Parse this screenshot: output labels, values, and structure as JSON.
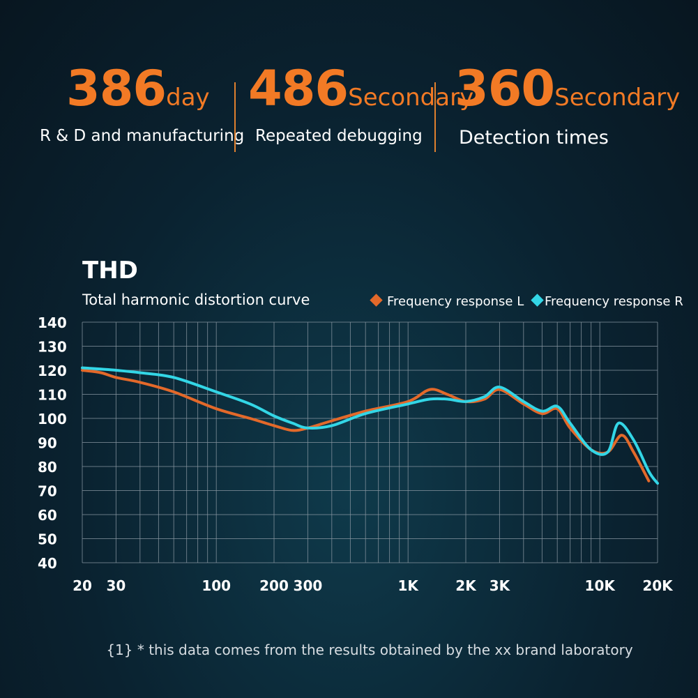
{
  "stats": [
    {
      "value": "386",
      "unit": "day",
      "caption": "R & D and manufacturing"
    },
    {
      "value": "486",
      "unit": "Secondary",
      "caption": "Repeated debugging"
    },
    {
      "value": "360",
      "unit": "Secondary",
      "caption": "Detection times"
    }
  ],
  "colors": {
    "accent": "#f27a25",
    "series_l": "#e3692a",
    "series_r": "#33d6e6"
  },
  "chart_data": {
    "type": "line",
    "title": "THD",
    "subtitle": "Total harmonic distortion curve",
    "xlabel": "",
    "ylabel": "",
    "x_scale": "log",
    "xlim": [
      20,
      20000
    ],
    "ylim": [
      40,
      140
    ],
    "grid": true,
    "legend_position": "top-right",
    "y_ticks": [
      "140",
      "130",
      "120",
      "110",
      "100",
      "90",
      "80",
      "70",
      "60",
      "50",
      "40"
    ],
    "x_ticks": [
      "20",
      "30",
      "100",
      "200",
      "300",
      "1K",
      "2K",
      "3K",
      "10K",
      "20K"
    ],
    "series": [
      {
        "name": "Frequency response L",
        "color": "#e3692a",
        "x": [
          20,
          25,
          30,
          40,
          60,
          100,
          150,
          200,
          250,
          300,
          400,
          600,
          1000,
          1300,
          1600,
          2000,
          2500,
          3000,
          4000,
          5000,
          6000,
          7000,
          9000,
          11000,
          13000,
          15000,
          18000
        ],
        "y": [
          120,
          119,
          117,
          115,
          111,
          104,
          100,
          97,
          95,
          96,
          99,
          103,
          107,
          112,
          110,
          107,
          108,
          112,
          106,
          102,
          104,
          96,
          87,
          86,
          93,
          86,
          74
        ]
      },
      {
        "name": "Frequency response R",
        "color": "#33d6e6",
        "x": [
          20,
          25,
          30,
          40,
          60,
          100,
          150,
          200,
          250,
          300,
          400,
          600,
          1000,
          1300,
          1600,
          2000,
          2500,
          3000,
          4000,
          5000,
          6000,
          7000,
          9000,
          11000,
          12500,
          15000,
          18000,
          20000
        ],
        "y": [
          121,
          120.5,
          120,
          119,
          117,
          111,
          106,
          101,
          98,
          96,
          97,
          102,
          106,
          108,
          108,
          107,
          109,
          113,
          107,
          103,
          105,
          98,
          87,
          86,
          98,
          91,
          78,
          73
        ]
      }
    ],
    "footnote": "{1} * this data comes from the results obtained by the xx brand laboratory"
  }
}
